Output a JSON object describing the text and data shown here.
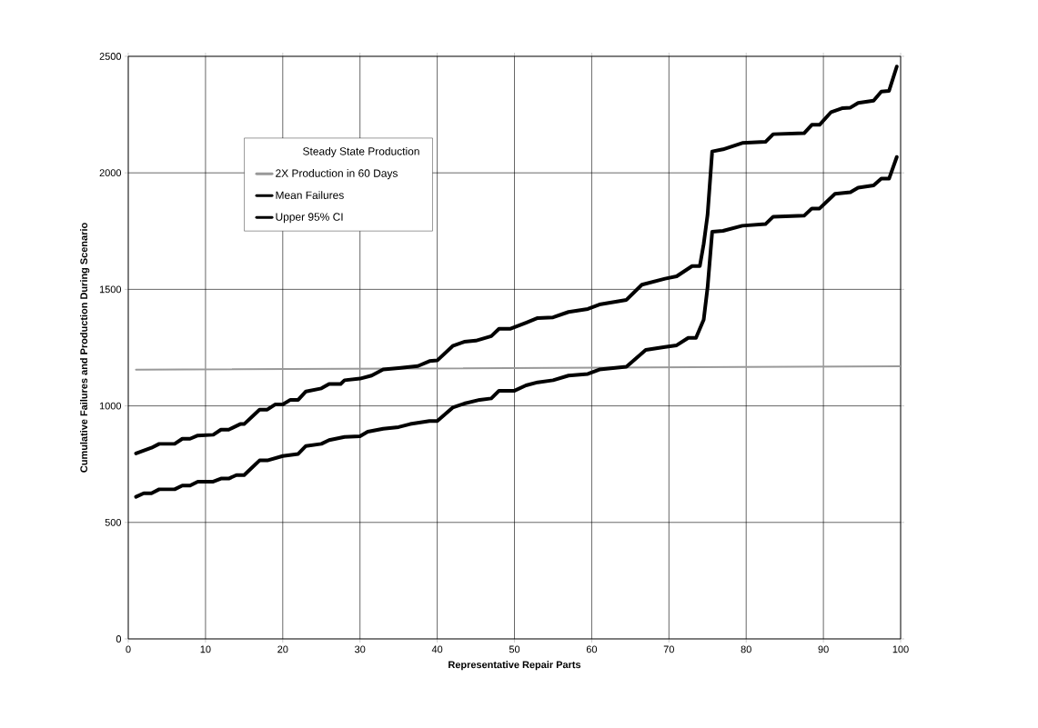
{
  "chart_data": {
    "type": "line",
    "xlabel": "Representative Repair Parts",
    "ylabel": "Cumulative Failures and Production During Scenario",
    "legend_title": "Steady State Production",
    "xlim": [
      0,
      100
    ],
    "xticks": [
      0,
      10,
      20,
      30,
      40,
      50,
      60,
      70,
      80,
      90,
      100
    ],
    "ylim": [
      0,
      2500
    ],
    "yticks": [
      0,
      500,
      1000,
      1500,
      2000,
      2500
    ],
    "grid": true,
    "legend": "top left",
    "marker": "none",
    "line_style": "solid",
    "series": [
      {
        "name": "2X Production in 60 Days",
        "color": "#999999",
        "x": [
          1,
          100
        ],
        "values": [
          1155,
          1170
        ]
      },
      {
        "name": "Mean Failures",
        "color": "#000000",
        "x": [
          1,
          2,
          3,
          4,
          6,
          7,
          8,
          9,
          11,
          12,
          13,
          14,
          15,
          17,
          18,
          20,
          22,
          23,
          25,
          26,
          28,
          30,
          31,
          33,
          35,
          36.5,
          39,
          40,
          42,
          43.5,
          45.5,
          47,
          48,
          50,
          51.5,
          53,
          55,
          57,
          59.5,
          61,
          64.5,
          67,
          69.5,
          71,
          72.5,
          73.5,
          74.5,
          75,
          75.6,
          77,
          79.5,
          82.5,
          83.5,
          87.5,
          88.5,
          89.5,
          91.5,
          93.5,
          94.5,
          96.5,
          97.5,
          98.5,
          99.5
        ],
        "values": [
          610,
          625,
          625,
          642,
          642,
          658,
          658,
          675,
          675,
          688,
          688,
          703,
          703,
          766,
          766,
          785,
          794,
          828,
          837,
          853,
          867,
          870,
          889,
          902,
          909,
          922,
          935,
          935,
          993,
          1010,
          1026,
          1032,
          1065,
          1065,
          1088,
          1101,
          1110,
          1130,
          1137,
          1156,
          1168,
          1240,
          1253,
          1260,
          1292,
          1292,
          1370,
          1507,
          1747,
          1751,
          1773,
          1780,
          1812,
          1816,
          1847,
          1847,
          1910,
          1917,
          1936,
          1946,
          1975,
          1975,
          2068
        ]
      },
      {
        "name": "Upper 95% CI",
        "color": "#000000",
        "x": [
          1,
          3,
          4,
          6,
          7,
          8,
          9,
          11,
          12,
          13,
          14.5,
          15,
          17,
          18,
          19,
          20,
          21,
          22,
          23,
          25,
          26,
          27.5,
          28,
          30,
          31.5,
          33,
          35,
          37.5,
          39,
          40,
          42,
          43.5,
          45,
          47,
          48,
          49.5,
          51.5,
          53,
          55,
          57,
          59.5,
          61,
          64.5,
          66.5,
          69.5,
          71,
          73,
          74,
          74.5,
          75,
          75.6,
          77,
          79.5,
          82.5,
          83.5,
          87.5,
          88.5,
          89.5,
          91,
          92.5,
          93.5,
          94.5,
          96.5,
          97.5,
          98.5,
          99.5
        ],
        "values": [
          796,
          820,
          837,
          837,
          859,
          859,
          873,
          876,
          898,
          898,
          922,
          922,
          984,
          984,
          1006,
          1006,
          1026,
          1026,
          1062,
          1075,
          1094,
          1094,
          1110,
          1117,
          1130,
          1156,
          1162,
          1171,
          1192,
          1195,
          1257,
          1275,
          1280,
          1299,
          1331,
          1331,
          1357,
          1377,
          1380,
          1403,
          1416,
          1435,
          1455,
          1520,
          1546,
          1556,
          1600,
          1600,
          1695,
          1819,
          2092,
          2101,
          2128,
          2133,
          2166,
          2170,
          2206,
          2206,
          2261,
          2278,
          2280,
          2300,
          2310,
          2349,
          2352,
          2456
        ]
      }
    ]
  }
}
